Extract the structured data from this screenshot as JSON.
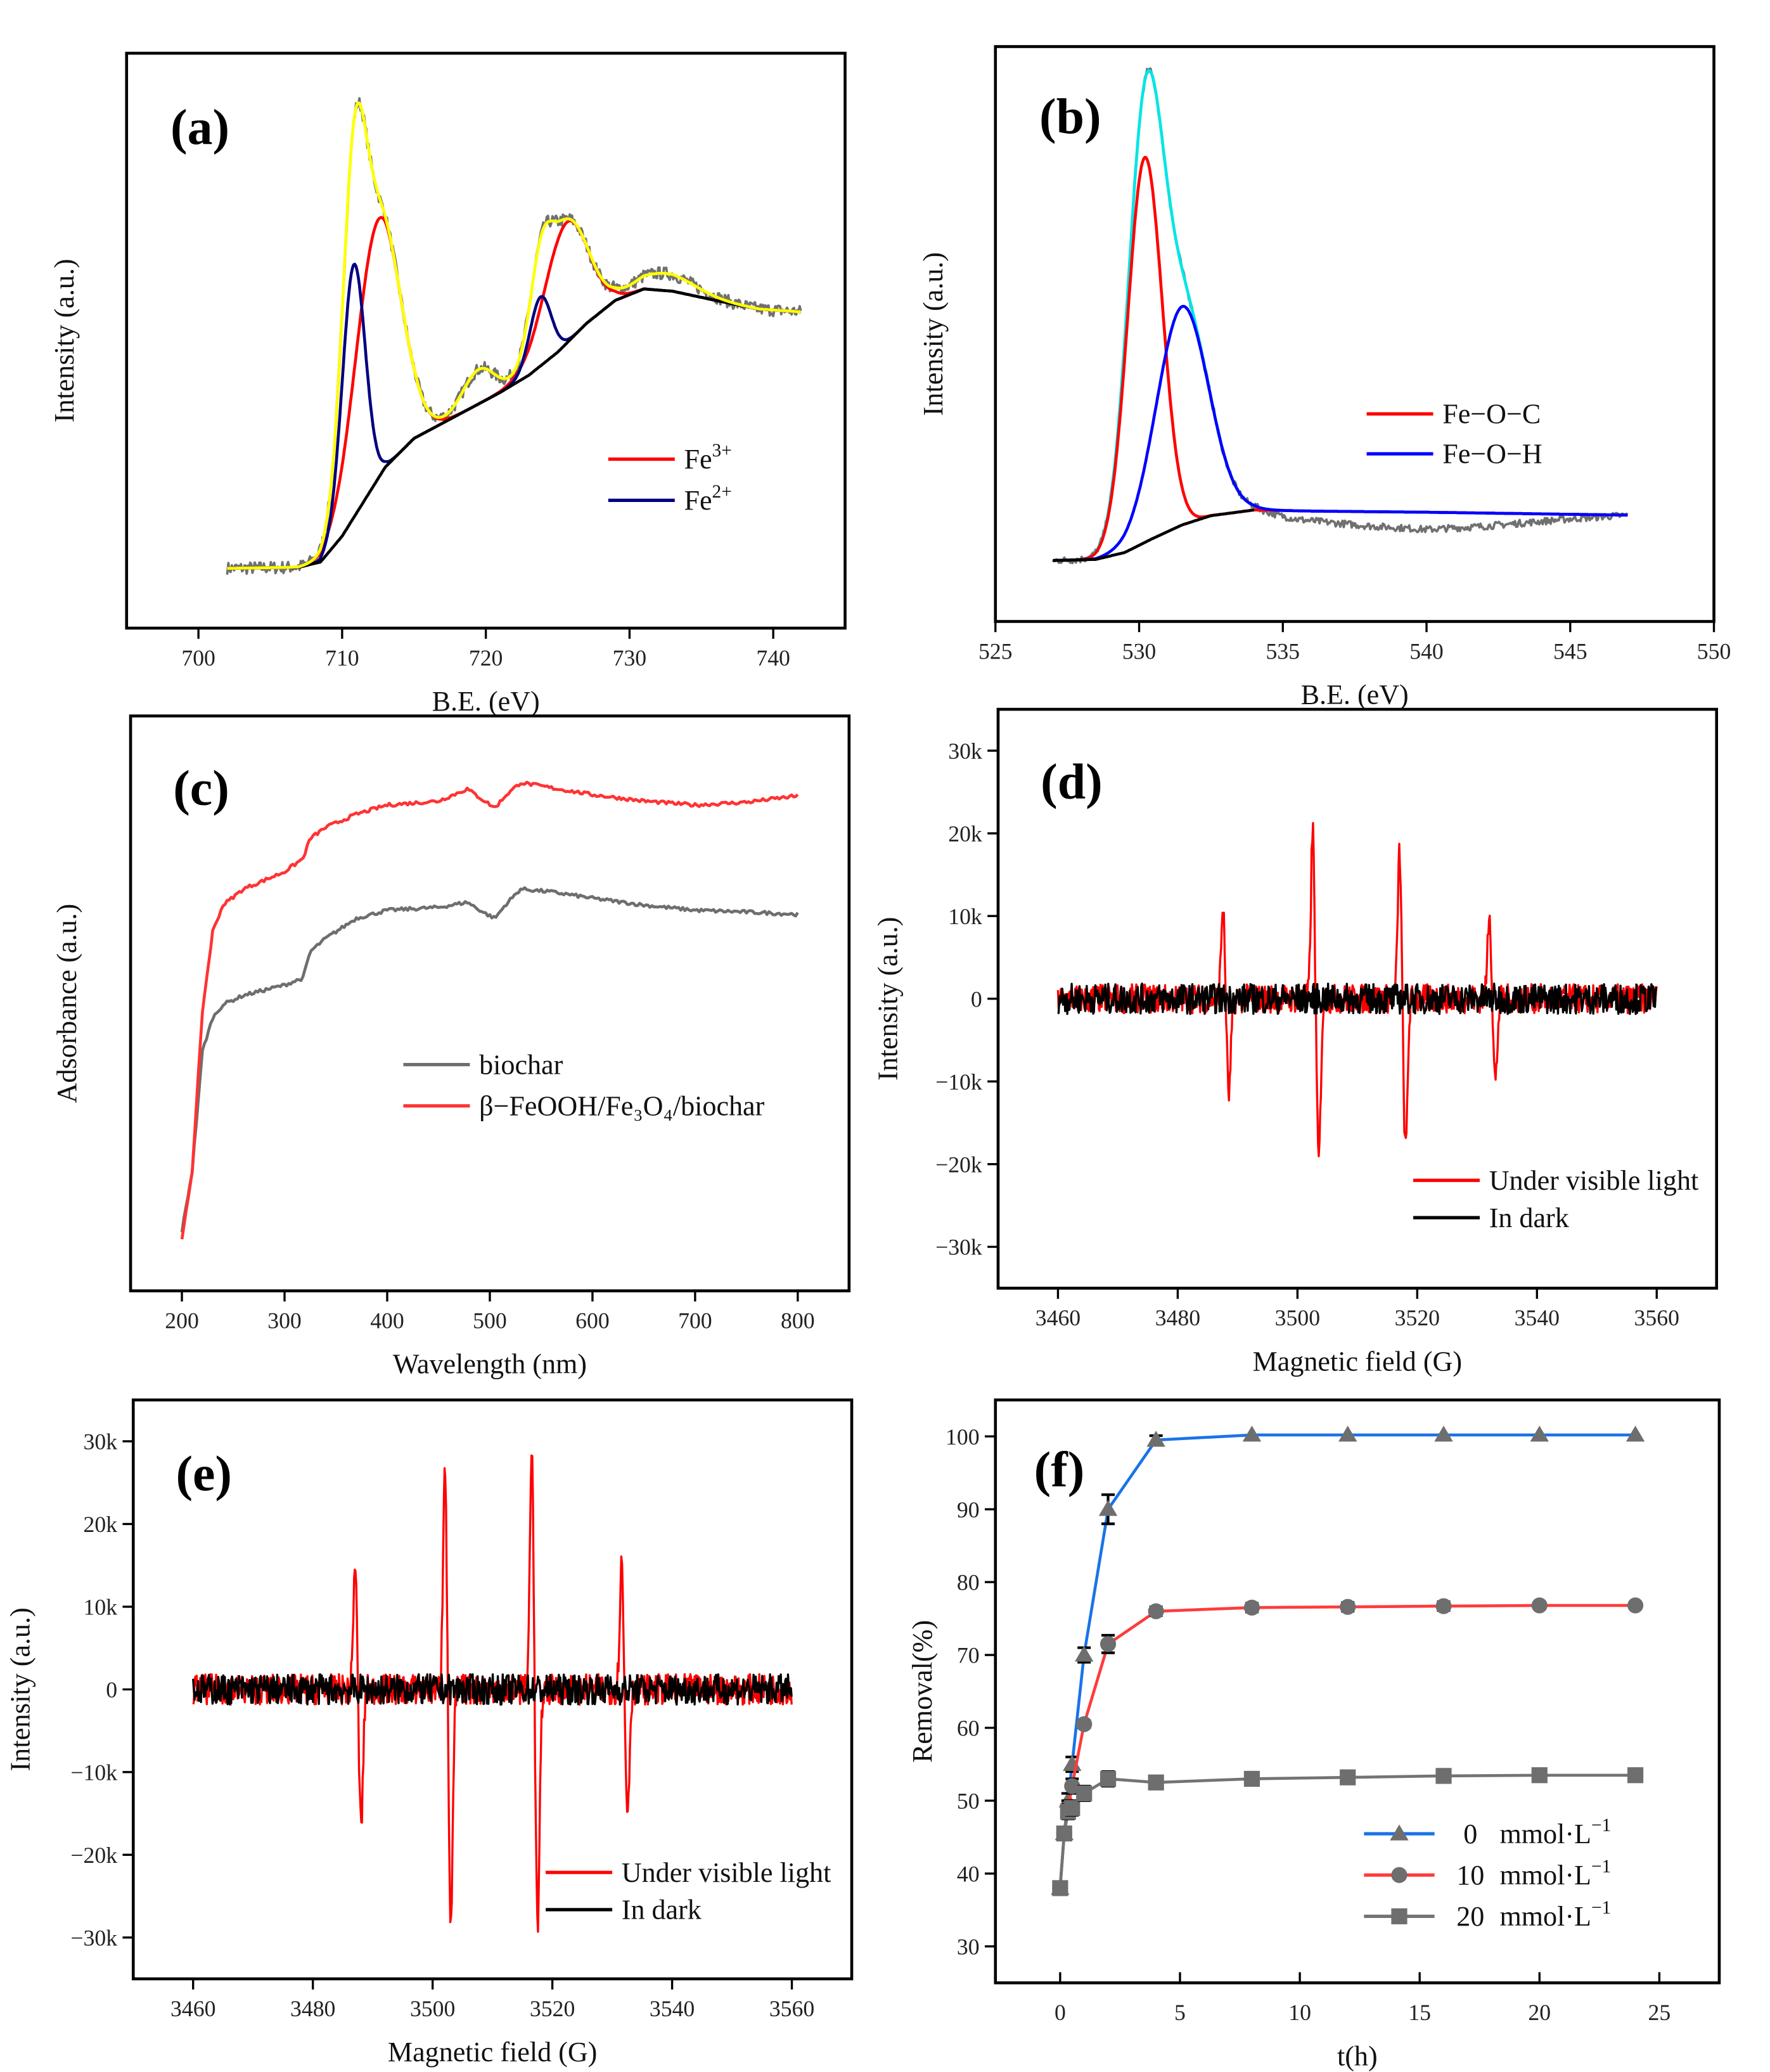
{
  "chart_data": [
    {
      "id": "a",
      "type": "line",
      "label": "(a)",
      "xlabel": "B.E. (eV)",
      "ylabel": "Intensity (a.u.)",
      "xlim": [
        695,
        745
      ],
      "ylim": [
        0,
        100
      ],
      "xticks": [
        700,
        710,
        720,
        730,
        740
      ],
      "background": [
        [
          702,
          10.4
        ],
        [
          707,
          10.6
        ],
        [
          708.5,
          11.5
        ],
        [
          710,
          16
        ],
        [
          711.5,
          22
        ],
        [
          713,
          28
        ],
        [
          715,
          33
        ],
        [
          718,
          37
        ],
        [
          721,
          41
        ],
        [
          723,
          44
        ],
        [
          725,
          48
        ],
        [
          727,
          53
        ],
        [
          729,
          57
        ],
        [
          731,
          59
        ],
        [
          733,
          58.6
        ],
        [
          736,
          57
        ],
        [
          739,
          55.5
        ],
        [
          742,
          55
        ]
      ],
      "fe3_peaks": [
        {
          "center": 712.5,
          "amp": 45,
          "sigma": 1.55
        },
        {
          "center": 725.6,
          "amp": 21,
          "sigma": 1.5
        }
      ],
      "fe2_peaks": [
        {
          "center": 710.8,
          "amp": 44,
          "sigma": 0.8
        },
        {
          "center": 723.8,
          "amp": 12,
          "sigma": 0.75
        }
      ],
      "satellite_peaks": [
        {
          "center": 719.5,
          "amp": 6,
          "sigma": 1.1
        },
        {
          "center": 732.5,
          "amp": 3,
          "sigma": 2.0
        }
      ],
      "legend": [
        {
          "name": "Fe",
          "sup": "3+",
          "color": "#ff0000"
        },
        {
          "name": "Fe",
          "sup": "2+",
          "color": "#000080"
        }
      ],
      "colors": {
        "raw": "#707070",
        "envelope": "#ffff00",
        "background": "#000000"
      }
    },
    {
      "id": "b",
      "type": "line",
      "label": "(b)",
      "xlabel": "B.E. (eV)",
      "ylabel": "Intensity (a.u.)",
      "xlim": [
        525,
        550
      ],
      "ylim": [
        0,
        100
      ],
      "xticks": [
        525,
        530,
        535,
        540,
        545,
        550
      ],
      "background": [
        [
          527,
          10.6
        ],
        [
          528.5,
          10.8
        ],
        [
          529.5,
          12
        ],
        [
          530.5,
          14.5
        ],
        [
          531.5,
          16.8
        ],
        [
          532.5,
          18.4
        ],
        [
          534,
          19.4
        ],
        [
          536,
          19.2
        ],
        [
          540,
          19
        ],
        [
          547,
          18.5
        ]
      ],
      "raw_offset": [
        [
          527,
          0
        ],
        [
          534,
          0
        ],
        [
          535.5,
          -1.5
        ],
        [
          538,
          -2.5
        ],
        [
          540,
          -3
        ],
        [
          542,
          -2.3
        ],
        [
          545,
          -0.8
        ],
        [
          547,
          0
        ]
      ],
      "peaks": [
        {
          "name": "Fe−O−C",
          "center": 530.2,
          "amp": 67,
          "sigma": 0.6,
          "color": "#ff0000"
        },
        {
          "name": "Fe−O−H",
          "center": 531.5,
          "amp": 38,
          "sigma": 0.9,
          "color": "#0000ff"
        }
      ],
      "colors": {
        "raw": "#707070",
        "envelope": "#00e5e5",
        "background": "#000000"
      }
    },
    {
      "id": "c",
      "type": "line",
      "label": "(c)",
      "xlabel": "Wavelength (nm)",
      "ylabel": "Adsorbance (a.u.)",
      "xlim": [
        150,
        850
      ],
      "ylim": [
        0,
        100
      ],
      "xticks": [
        200,
        300,
        400,
        500,
        600,
        700,
        800
      ],
      "x": [
        200,
        210,
        220,
        230,
        240,
        260,
        300,
        318,
        325,
        340,
        370,
        400,
        450,
        478,
        495,
        505,
        515,
        530,
        560,
        600,
        650,
        700,
        750,
        800
      ],
      "series": [
        {
          "name": "biochar",
          "color": "#6e6e6e",
          "values": [
            10.4,
            20.8,
            41.7,
            47.5,
            49.8,
            51.4,
            53.2,
            54.4,
            59.0,
            61.3,
            64.8,
            66.2,
            66.7,
            67.6,
            65.7,
            64.8,
            67.1,
            69.9,
            69.4,
            68.3,
            67.1,
            66.2,
            65.9,
            65.5
          ]
        },
        {
          "name": "β−FeOOH/Fe₃O₄/biochar",
          "color": "#ff3333",
          "values": [
            8.8,
            20.8,
            48.6,
            62.5,
            67.1,
            69.9,
            72.9,
            75.2,
            78.7,
            80.6,
            82.9,
            84.5,
            85.2,
            87.3,
            85.2,
            84.0,
            86.1,
            88.4,
            87.5,
            86.3,
            85.2,
            84.5,
            85.0,
            86.1
          ]
        }
      ]
    },
    {
      "id": "d",
      "type": "line",
      "label": "(d)",
      "xlabel": "Magnetic field (G)",
      "ylabel": "Intensity (a.u.)",
      "xlim": [
        3450,
        3570
      ],
      "ylim": [
        -35000,
        35000
      ],
      "xticks": [
        3460,
        3480,
        3500,
        3520,
        3540,
        3560
      ],
      "yticks": [
        -30000,
        -20000,
        -10000,
        0,
        10000,
        20000,
        30000
      ],
      "ytick_labels": [
        "−30k",
        "−20k",
        "−10k",
        "0",
        "10k",
        "20k",
        "30k"
      ],
      "field_range": [
        3460,
        3560
      ],
      "series": [
        {
          "name": "Under visible light",
          "color": "#ff0000",
          "noise": 2200,
          "peaks": [
            {
              "field": 3488,
              "max": 11000,
              "min": -11500
            },
            {
              "field": 3503,
              "max": 20500,
              "min": -19500
            },
            {
              "field": 3517.5,
              "max": 18000,
              "min": -18500
            },
            {
              "field": 3532.5,
              "max": 10800,
              "min": -10000
            }
          ]
        },
        {
          "name": "In dark",
          "color": "#000000",
          "noise": 2300,
          "peaks": []
        }
      ]
    },
    {
      "id": "e",
      "type": "line",
      "label": "(e)",
      "xlabel": "Magnetic field (G)",
      "ylabel": "Intensity (a.u.)",
      "xlim": [
        3450,
        3570
      ],
      "ylim": [
        -35000,
        35000
      ],
      "xticks": [
        3460,
        3480,
        3500,
        3520,
        3540,
        3560
      ],
      "yticks": [
        -30000,
        -20000,
        -10000,
        0,
        10000,
        20000,
        30000
      ],
      "ytick_labels": [
        "−30k",
        "−20k",
        "−10k",
        "0",
        "10k",
        "20k",
        "30k"
      ],
      "field_range": [
        3460,
        3560
      ],
      "series": [
        {
          "name": "Under visible light",
          "color": "#ff0000",
          "noise": 2300,
          "peaks": [
            {
              "field": 3487.5,
              "max": 15500,
              "min": -16500
            },
            {
              "field": 3502.5,
              "max": 28500,
              "min": -28500
            },
            {
              "field": 3517,
              "max": 30000,
              "min": -29000
            },
            {
              "field": 3532,
              "max": 15500,
              "min": -14500
            }
          ]
        },
        {
          "name": "In dark",
          "color": "#000000",
          "noise": 2300,
          "peaks": []
        }
      ]
    },
    {
      "id": "f",
      "type": "line",
      "label": "(f)",
      "xlabel": "t(h)",
      "ylabel": "Removal(%)",
      "xlim": [
        -2.7,
        27.5
      ],
      "ylim": [
        25,
        105
      ],
      "xticks": [
        0,
        5,
        10,
        15,
        20,
        25
      ],
      "yticks": [
        30,
        40,
        50,
        60,
        70,
        80,
        90,
        100
      ],
      "x": [
        0,
        0.17,
        0.33,
        0.5,
        1,
        2,
        4,
        8,
        12,
        16,
        20,
        24
      ],
      "series": [
        {
          "name": "0",
          "unit": "mmol·L",
          "sup": "−1",
          "color": "#1a73e8",
          "marker": "triangle",
          "values": [
            38,
            45.5,
            50,
            55,
            70,
            90,
            99.5,
            100.2,
            100.2,
            100.2,
            100.2,
            100.2
          ],
          "errors": [
            0.6,
            0.8,
            1,
            1,
            1,
            2,
            0.6,
            0,
            0,
            0,
            0,
            0
          ]
        },
        {
          "name": "10",
          "unit": "mmol·L",
          "sup": "−1",
          "color": "#ff3b3b",
          "marker": "circle",
          "values": [
            38,
            45.5,
            49,
            52,
            60.5,
            71.5,
            76,
            76.5,
            76.6,
            76.7,
            76.8,
            76.8
          ],
          "errors": [
            0.6,
            0.8,
            1,
            1,
            0.5,
            1.2,
            0.6,
            0.6,
            0.6,
            0.6,
            0,
            0
          ]
        },
        {
          "name": "20",
          "unit": "mmol·L",
          "sup": "−1",
          "color": "#737373",
          "marker": "square",
          "values": [
            38,
            45.5,
            48.5,
            49,
            51,
            53,
            52.5,
            53,
            53.2,
            53.4,
            53.5,
            53.5
          ],
          "errors": [
            0.6,
            0.8,
            1,
            1,
            1,
            1,
            0.6,
            0.6,
            0.6,
            0.6,
            0,
            0
          ]
        }
      ]
    }
  ]
}
